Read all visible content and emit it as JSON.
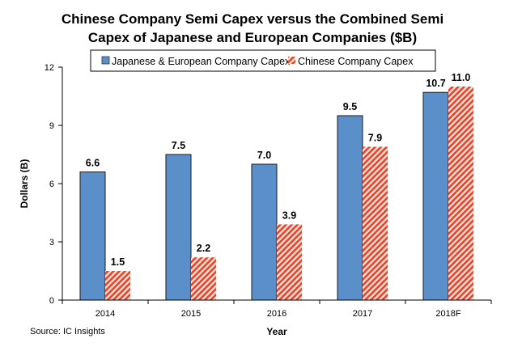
{
  "chart_data": {
    "type": "bar",
    "title": "Chinese Company Semi Capex versus the Combined Semi Capex of Japanese and European Companies ($B)",
    "title_lines": [
      "Chinese Company Semi Capex versus the Combined Semi",
      "Capex of Japanese and European Companies ($B)"
    ],
    "xlabel": "Year",
    "ylabel": "Dollars (B)",
    "ylim": [
      0,
      12
    ],
    "yticks": [
      0,
      3,
      6,
      9,
      12
    ],
    "categories": [
      "2014",
      "2015",
      "2016",
      "2017",
      "2018F"
    ],
    "series": [
      {
        "name": "Japanese & European Company Capex",
        "values": [
          6.6,
          7.5,
          7.0,
          9.5,
          10.7
        ],
        "labels": [
          "6.6",
          "7.5",
          "7.0",
          "9.5",
          "10.7"
        ],
        "color": "#5B8FC9",
        "fill": "solid"
      },
      {
        "name": "Chinese Company Capex",
        "values": [
          1.5,
          2.2,
          3.9,
          7.9,
          11.0
        ],
        "labels": [
          "1.5",
          "2.2",
          "3.9",
          "7.9",
          "11.0"
        ],
        "color": "#E8412C",
        "fill": "diagonal-hatch"
      }
    ],
    "grid": false,
    "legend": "top",
    "source": "Source: IC Insights"
  }
}
